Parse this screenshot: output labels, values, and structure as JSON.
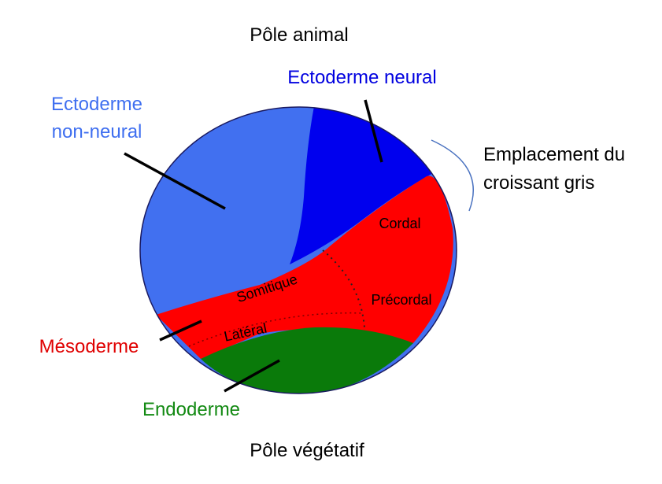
{
  "labels": {
    "top": "Pôle animal",
    "bottom": "Pôle végétatif",
    "neural": "Ectoderme neural",
    "non_neural": [
      "Ectoderme",
      "non-neural"
    ],
    "gray_crescent": [
      "Emplacement du",
      "croissant gris"
    ],
    "mesoderm": "Mésoderme",
    "endoderm": "Endoderme",
    "regions": {
      "cordal": "Cordal",
      "precordal": "Précordal",
      "somitic": "Somitique",
      "lateral": "Latéral"
    }
  }
}
